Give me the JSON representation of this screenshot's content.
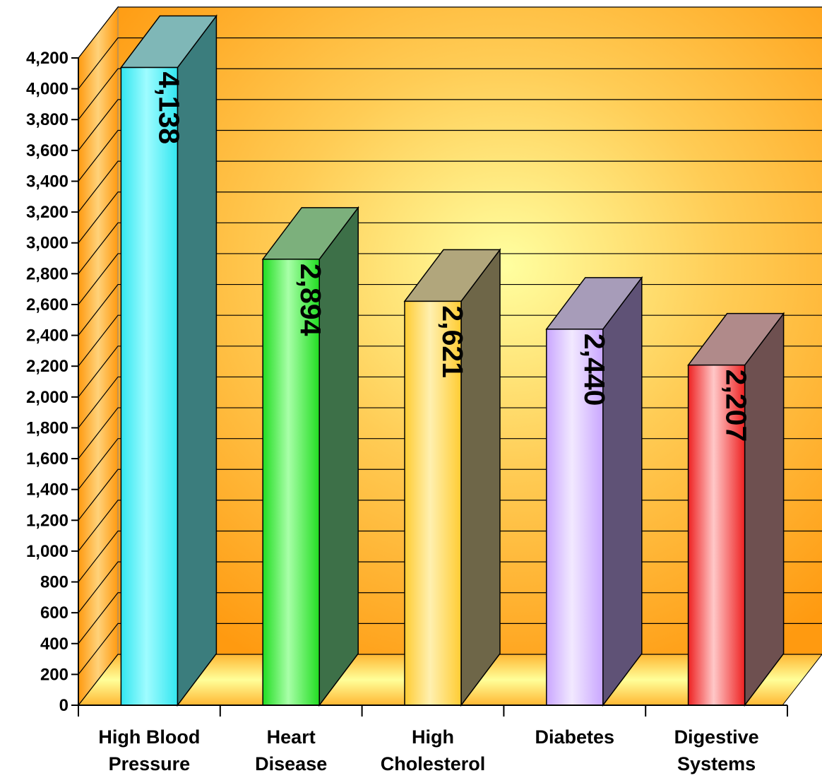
{
  "chart_data": {
    "type": "bar",
    "categories": [
      [
        "High Blood",
        "Pressure"
      ],
      [
        "Heart",
        "Disease"
      ],
      [
        "High",
        "Cholesterol"
      ],
      [
        "Diabetes"
      ],
      [
        "Digestive",
        "Systems"
      ]
    ],
    "values": [
      4138,
      2894,
      2621,
      2440,
      2207
    ],
    "value_labels": [
      "4,138",
      "2,894",
      "2,621",
      "2,440",
      "2,207"
    ],
    "y_ticks": [
      "0",
      "200",
      "400",
      "600",
      "800",
      "1,000",
      "1,200",
      "1,400",
      "1,600",
      "1,800",
      "2,000",
      "2,200",
      "2,400",
      "2,600",
      "2,800",
      "3,000",
      "3,200",
      "3,400",
      "3,600",
      "3,800",
      "4,000",
      "4,200"
    ],
    "ylim": [
      0,
      4200
    ],
    "grid": true,
    "style": "3d",
    "colors": [
      {
        "light": "#9ffcff",
        "mid": "#33e6f0",
        "side": "#3b7d7d",
        "top": "#7fb7b7"
      },
      {
        "light": "#a8ffa8",
        "mid": "#22dd22",
        "side": "#3d7048",
        "top": "#7cb07c"
      },
      {
        "light": "#fff0b0",
        "mid": "#ffcc33",
        "side": "#6e6648",
        "top": "#b1a67c"
      },
      {
        "light": "#f2e9ff",
        "mid": "#c9a6ff",
        "side": "#5f5276",
        "top": "#a79cb9"
      },
      {
        "light": "#ffc8c8",
        "mid": "#ee2222",
        "side": "#6e5050",
        "top": "#b08a8a"
      }
    ]
  }
}
